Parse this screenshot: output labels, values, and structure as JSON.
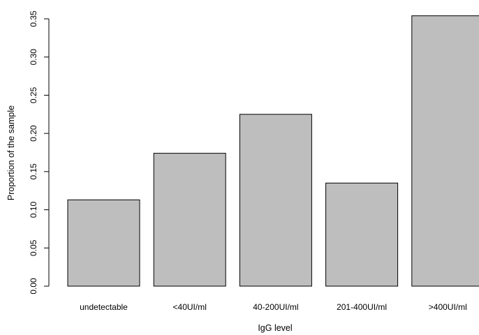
{
  "chart_data": {
    "type": "bar",
    "categories": [
      "undetectable",
      "<40UI/ml",
      "40-200UI/ml",
      "201-400UI/ml",
      ">400UI/ml"
    ],
    "values": [
      0.113,
      0.174,
      0.225,
      0.135,
      0.354
    ],
    "xlabel": "IgG level",
    "ylabel": "Proportion of the sample",
    "ylim": [
      0,
      0.35
    ],
    "yticks": [
      "0.00",
      "0.05",
      "0.10",
      "0.15",
      "0.20",
      "0.25",
      "0.30",
      "0.35"
    ],
    "grid": false,
    "bar_color": "#bebebe",
    "bar_edge_color": "#000000"
  }
}
